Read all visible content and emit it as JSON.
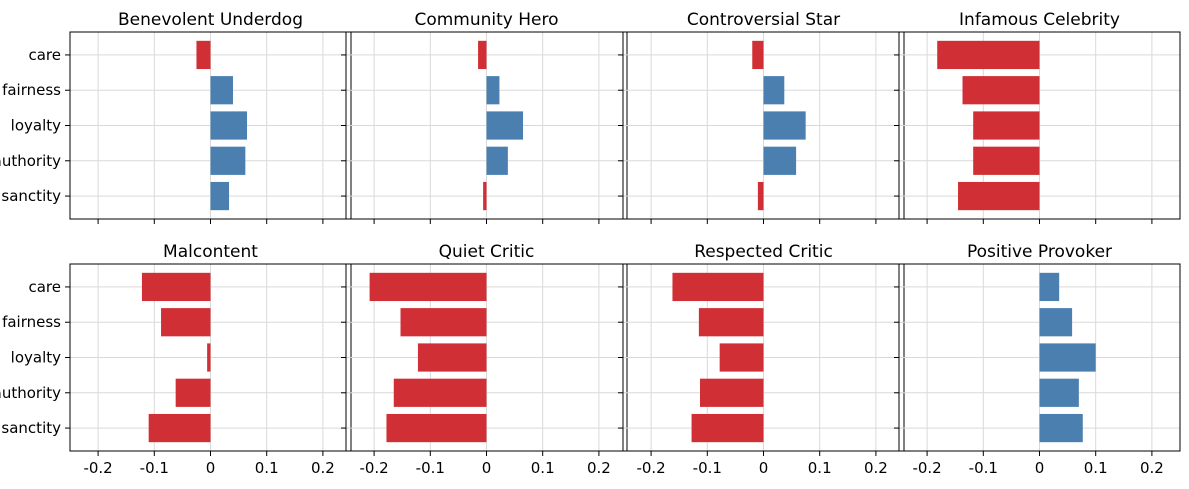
{
  "chart_data": {
    "type": "bar",
    "orientation": "horizontal",
    "categories": [
      "care",
      "fairness",
      "loyalty",
      "authority",
      "sanctity"
    ],
    "xlim": [
      -0.25,
      0.25
    ],
    "xticks": [
      -0.2,
      -0.1,
      0,
      0.1,
      0.2
    ],
    "xtick_labels": [
      "-0.2",
      "-0.1",
      "0",
      "0.1",
      "0.2"
    ],
    "grid": true,
    "colors": {
      "positive": "#4a7fb0",
      "negative": "#d03035"
    },
    "panels": [
      {
        "title": "Benevolent Underdog",
        "values": [
          -0.025,
          0.04,
          0.065,
          0.062,
          0.033
        ]
      },
      {
        "title": "Community Hero",
        "values": [
          -0.015,
          0.023,
          0.065,
          0.038,
          -0.006
        ]
      },
      {
        "title": "Controversial Star",
        "values": [
          -0.02,
          0.037,
          0.075,
          0.058,
          -0.01
        ]
      },
      {
        "title": "Infamous Celebrity",
        "values": [
          -0.182,
          -0.137,
          -0.118,
          -0.118,
          -0.145
        ]
      },
      {
        "title": "Malcontent",
        "values": [
          -0.122,
          -0.088,
          -0.006,
          -0.062,
          -0.11
        ]
      },
      {
        "title": "Quiet Critic",
        "values": [
          -0.208,
          -0.153,
          -0.122,
          -0.165,
          -0.178
        ]
      },
      {
        "title": "Respected Critic",
        "values": [
          -0.162,
          -0.115,
          -0.078,
          -0.113,
          -0.128
        ]
      },
      {
        "title": "Positive Provoker",
        "values": [
          0.035,
          0.058,
          0.1,
          0.07,
          0.077
        ]
      }
    ]
  }
}
